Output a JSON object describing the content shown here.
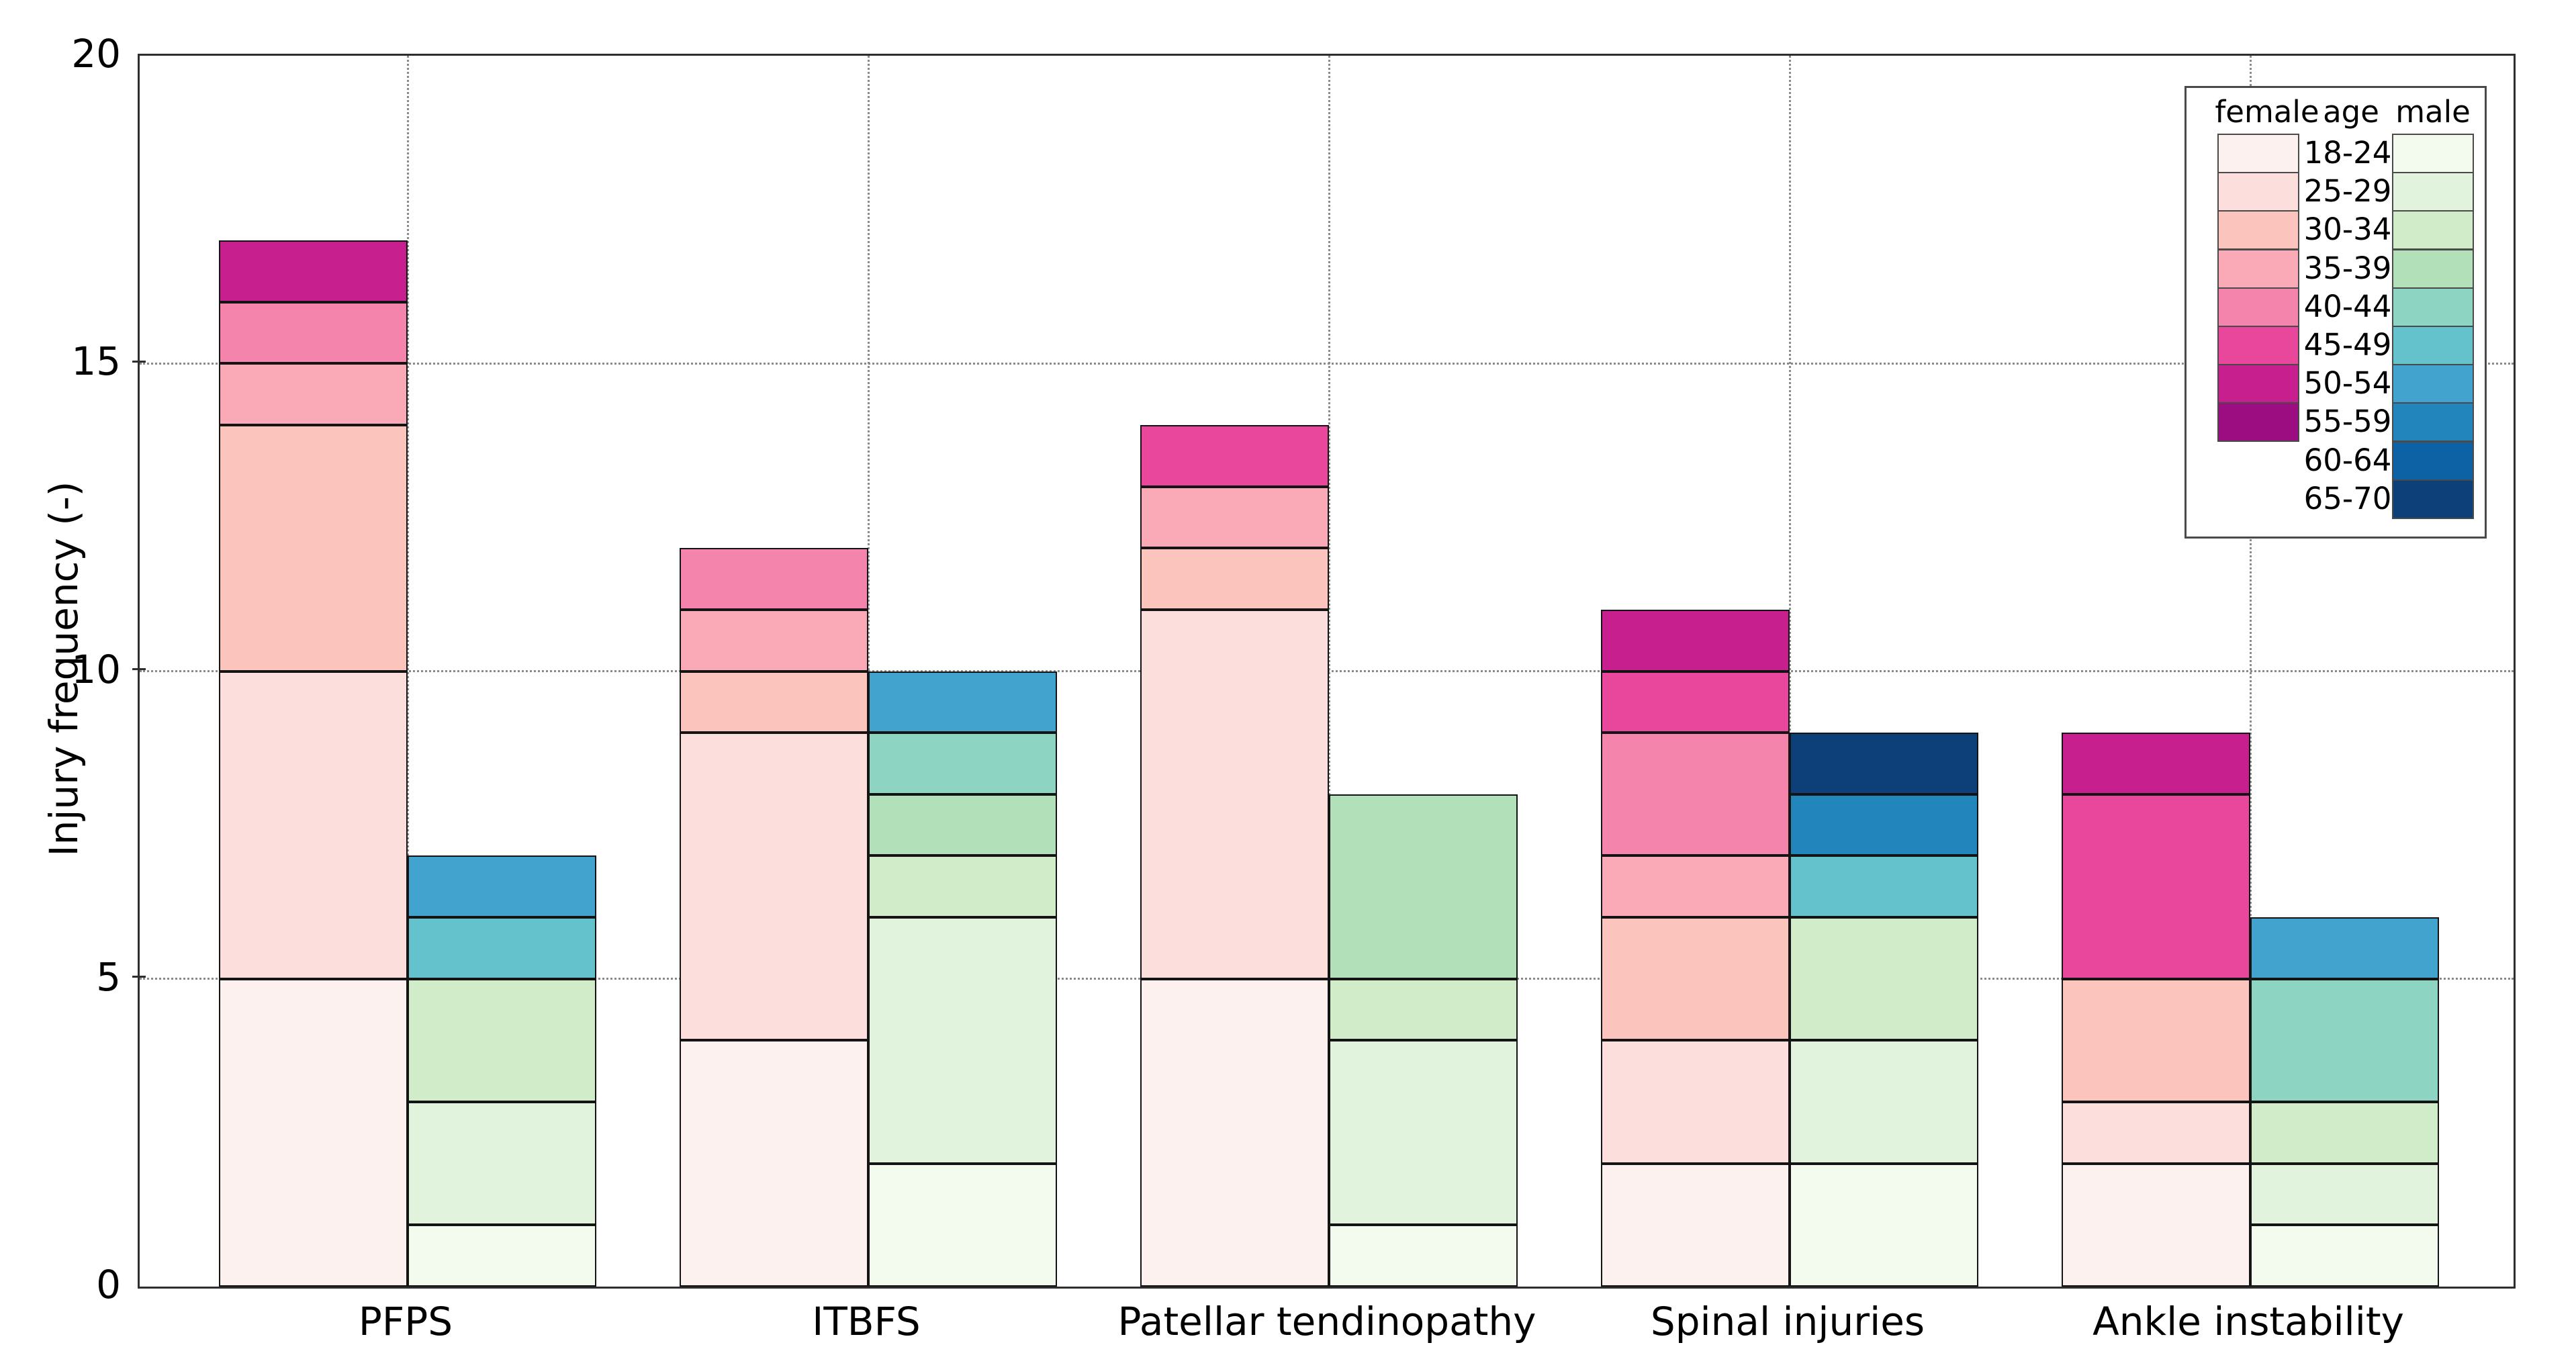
{
  "chart_data": {
    "type": "bar",
    "variant": "grouped-stacked",
    "title": "",
    "xlabel": "",
    "ylabel": "Injury frequency (-)",
    "ylim": [
      0,
      20
    ],
    "yticks": [
      0,
      5,
      10,
      15,
      20
    ],
    "grid": {
      "show": true,
      "style": "dotted",
      "axes": "both"
    },
    "categories": [
      "PFPS",
      "ITBFS",
      "Patellar tendinopathy",
      "Spinal injuries",
      "Ankle instability"
    ],
    "age_groups": [
      "18-24",
      "25-29",
      "30-34",
      "35-39",
      "40-44",
      "45-49",
      "50-54",
      "55-59",
      "60-64",
      "65-70"
    ],
    "legend": {
      "position": "upper-right",
      "female_header": "female",
      "age_header": "age",
      "male_header": "male"
    },
    "colors": {
      "female": [
        "#fdf1f0",
        "#fcdfdd",
        "#fbc5be",
        "#faaab7",
        "#f584ac",
        "#e8479c",
        "#c7208e",
        "#9c0d82"
      ],
      "male": [
        "#f3faee",
        "#e1f3dc",
        "#d1ecc9",
        "#b2e0b9",
        "#8ed4c3",
        "#64c2cd",
        "#41a3ce",
        "#2286bd",
        "#0d62a6",
        "#0d3f79"
      ]
    },
    "series": [
      {
        "name": "female",
        "per_category_age_counts": [
          [
            5,
            5,
            4,
            1,
            1,
            0,
            1,
            0,
            0,
            0
          ],
          [
            4,
            5,
            1,
            1,
            1,
            0,
            0,
            0,
            0,
            0
          ],
          [
            5,
            6,
            1,
            1,
            0,
            1,
            0,
            0,
            0,
            0
          ],
          [
            2,
            2,
            2,
            1,
            2,
            1,
            1,
            0,
            0,
            0
          ],
          [
            2,
            1,
            2,
            0,
            0,
            3,
            1,
            0,
            0,
            0
          ]
        ],
        "totals": [
          17,
          12,
          14,
          11,
          9
        ]
      },
      {
        "name": "male",
        "per_category_age_counts": [
          [
            1,
            2,
            2,
            0,
            0,
            1,
            1,
            0,
            0,
            0
          ],
          [
            2,
            4,
            1,
            1,
            1,
            0,
            1,
            0,
            0,
            0
          ],
          [
            1,
            3,
            1,
            3,
            0,
            0,
            0,
            0,
            0,
            0
          ],
          [
            2,
            2,
            2,
            0,
            0,
            1,
            0,
            1,
            0,
            1
          ],
          [
            1,
            1,
            1,
            0,
            2,
            0,
            1,
            0,
            0,
            0
          ]
        ],
        "totals": [
          7,
          10,
          8,
          9,
          6
        ]
      }
    ]
  }
}
